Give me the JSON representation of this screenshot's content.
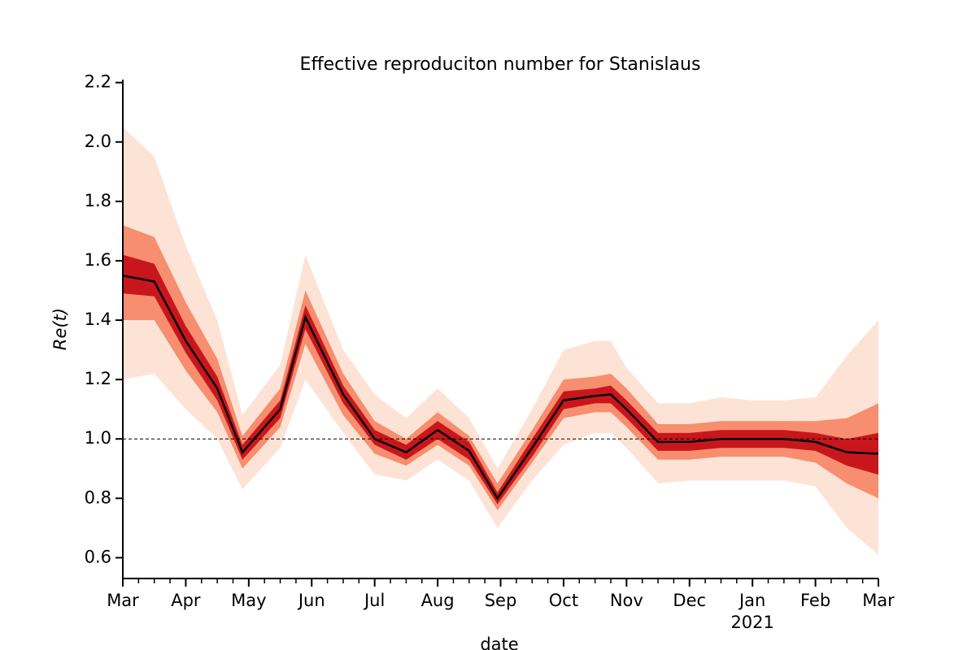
{
  "chart_data": {
    "type": "fan",
    "title": "Effective reproduciton number for Stanislaus",
    "xlabel": "date",
    "ylabel": "Re(t)",
    "x": [
      0,
      0.5,
      1,
      1.5,
      1.9,
      2.5,
      2.9,
      3.5,
      4,
      4.5,
      5,
      5.5,
      5.95,
      6.5,
      7,
      7.5,
      7.75,
      8,
      8.5,
      9,
      9.5,
      10,
      10.5,
      11,
      11.5,
      12
    ],
    "median": {
      "color": "#000000",
      "values": [
        1.55,
        1.53,
        1.33,
        1.17,
        0.955,
        1.1,
        1.41,
        1.15,
        1.0,
        0.955,
        1.03,
        0.96,
        0.8,
        0.97,
        1.13,
        1.145,
        1.15,
        1.1,
        0.99,
        0.99,
        1.0,
        1.0,
        1.0,
        0.99,
        0.955,
        0.95
      ]
    },
    "bands": [
      {
        "color": "#fde3d6",
        "lower": [
          1.2,
          1.22,
          1.1,
          1.0,
          0.83,
          0.97,
          1.2,
          1.02,
          0.88,
          0.86,
          0.93,
          0.86,
          0.7,
          0.86,
          0.98,
          1.02,
          1.02,
          0.97,
          0.85,
          0.86,
          0.86,
          0.86,
          0.86,
          0.84,
          0.7,
          0.61
        ],
        "upper": [
          2.05,
          1.95,
          1.65,
          1.4,
          1.08,
          1.25,
          1.62,
          1.3,
          1.15,
          1.07,
          1.17,
          1.07,
          0.9,
          1.1,
          1.3,
          1.33,
          1.33,
          1.24,
          1.12,
          1.12,
          1.14,
          1.13,
          1.13,
          1.14,
          1.28,
          1.4
        ]
      },
      {
        "color": "#f68e6f",
        "lower": [
          1.4,
          1.4,
          1.23,
          1.09,
          0.9,
          1.04,
          1.32,
          1.08,
          0.95,
          0.91,
          0.98,
          0.91,
          0.76,
          0.92,
          1.07,
          1.09,
          1.09,
          1.04,
          0.93,
          0.93,
          0.94,
          0.94,
          0.94,
          0.92,
          0.85,
          0.8
        ],
        "upper": [
          1.72,
          1.68,
          1.46,
          1.27,
          1.01,
          1.17,
          1.5,
          1.22,
          1.06,
          1.0,
          1.09,
          1.01,
          0.85,
          1.03,
          1.2,
          1.21,
          1.22,
          1.17,
          1.05,
          1.05,
          1.06,
          1.06,
          1.06,
          1.06,
          1.07,
          1.12
        ]
      },
      {
        "color": "#c8171c",
        "lower": [
          1.49,
          1.48,
          1.29,
          1.13,
          0.93,
          1.07,
          1.37,
          1.12,
          0.98,
          0.93,
          1.0,
          0.93,
          0.78,
          0.94,
          1.1,
          1.12,
          1.12,
          1.07,
          0.96,
          0.96,
          0.97,
          0.97,
          0.97,
          0.96,
          0.91,
          0.88
        ],
        "upper": [
          1.62,
          1.59,
          1.38,
          1.21,
          0.98,
          1.13,
          1.45,
          1.18,
          1.03,
          0.98,
          1.06,
          0.99,
          0.82,
          1.0,
          1.16,
          1.17,
          1.18,
          1.13,
          1.02,
          1.02,
          1.03,
          1.03,
          1.03,
          1.02,
          1.0,
          1.02
        ]
      }
    ],
    "hline": 1,
    "xlim": [
      0,
      12
    ],
    "ylim": [
      0.53,
      2.21
    ],
    "xticks": [
      {
        "value": 0,
        "label": "Mar"
      },
      {
        "value": 1,
        "label": "Apr"
      },
      {
        "value": 2,
        "label": "May"
      },
      {
        "value": 3,
        "label": "Jun"
      },
      {
        "value": 4,
        "label": "Jul"
      },
      {
        "value": 5,
        "label": "Aug"
      },
      {
        "value": 6,
        "label": "Sep"
      },
      {
        "value": 7,
        "label": "Oct"
      },
      {
        "value": 8,
        "label": "Nov"
      },
      {
        "value": 9,
        "label": "Dec"
      },
      {
        "value": 10,
        "label": "Jan"
      },
      {
        "value": 11,
        "label": "Feb"
      },
      {
        "value": 12,
        "label": "Mar"
      }
    ],
    "year_label": "2021",
    "xminorticks": [
      0.25,
      0.5,
      0.75,
      1.25,
      1.5,
      1.75,
      2.25,
      2.5,
      2.75,
      3.25,
      3.5,
      3.75,
      4.25,
      4.5,
      4.75,
      5.25,
      5.5,
      5.75,
      6.25,
      6.5,
      6.75,
      7.25,
      7.5,
      7.75,
      8.25,
      8.5,
      8.75,
      9.25,
      9.5,
      9.75,
      10.25,
      10.5,
      10.75,
      11.25,
      11.5,
      11.75
    ],
    "yticks": [
      0.6,
      0.8,
      {
        "value": 1,
        "label": "1.0"
      },
      1.2,
      1.4,
      1.6,
      1.8,
      {
        "value": 2,
        "label": "2.0"
      },
      2.2
    ]
  }
}
